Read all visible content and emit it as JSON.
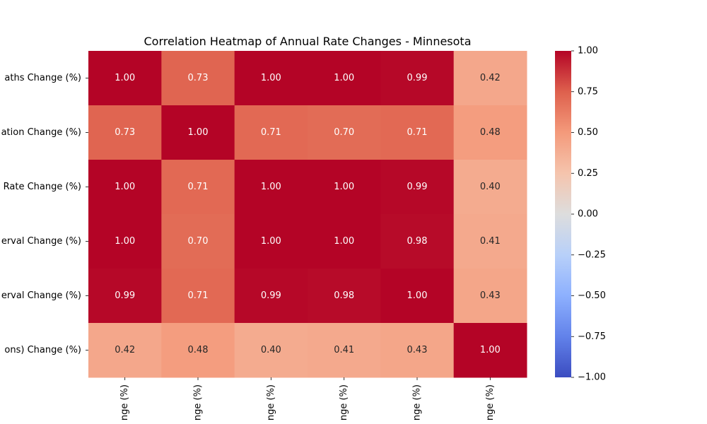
{
  "chart_data": {
    "type": "heatmap",
    "title": "Correlation Heatmap of Annual Rate Changes - Minnesota",
    "row_labels": [
      "aths Change (%)",
      "ation Change (%)",
      "Rate Change (%)",
      "erval Change (%)",
      "erval Change (%)",
      "ons) Change (%)"
    ],
    "column_labels": [
      "nge (%)",
      "nge (%)",
      "nge (%)",
      "nge (%)",
      "nge (%)",
      "nge (%)"
    ],
    "values": [
      [
        1.0,
        0.73,
        1.0,
        1.0,
        0.99,
        0.42
      ],
      [
        0.73,
        1.0,
        0.71,
        0.7,
        0.71,
        0.48
      ],
      [
        1.0,
        0.71,
        1.0,
        1.0,
        0.99,
        0.4
      ],
      [
        1.0,
        0.7,
        1.0,
        1.0,
        0.98,
        0.41
      ],
      [
        0.99,
        0.71,
        0.99,
        0.98,
        1.0,
        0.43
      ],
      [
        0.42,
        0.48,
        0.4,
        0.41,
        0.43,
        1.0
      ]
    ],
    "value_format": "0.00",
    "colormap": "coolwarm",
    "vmin": -1.0,
    "vmax": 1.0,
    "colorbar_ticks": [
      "1.00",
      "0.75",
      "0.50",
      "0.25",
      "0.00",
      "−0.25",
      "−0.50",
      "−0.75",
      "−1.00"
    ],
    "colorbar_tick_values": [
      1.0,
      0.75,
      0.5,
      0.25,
      0.0,
      -0.25,
      -0.5,
      -0.75,
      -1.0
    ]
  }
}
